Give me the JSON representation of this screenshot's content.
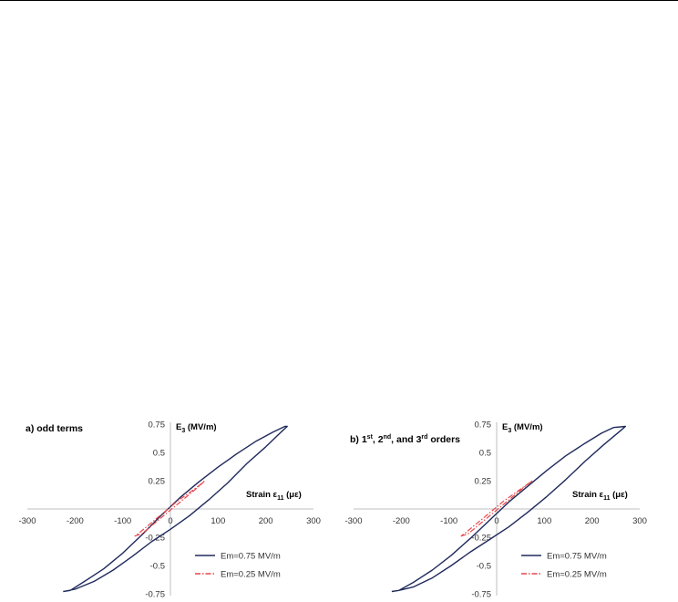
{
  "chart_data": [
    {
      "type": "line",
      "title": "a) odd terms",
      "xlabel": "Strain ε11 (με)",
      "ylabel": "E3 (MV/m)",
      "xlim": [
        -300,
        300
      ],
      "ylim": [
        -0.75,
        0.75
      ],
      "x_ticks": [
        "-300",
        "-200",
        "-100",
        "0",
        "100",
        "200",
        "300"
      ],
      "y_ticks": [
        "0.75",
        "0.5",
        "0.25",
        "-0.25",
        "-0.5",
        "-0.75"
      ],
      "legend_position": "bottom-right",
      "series": [
        {
          "name": "Em=0.75 MV/m",
          "color": "#1f2a5c",
          "style": "solid",
          "x": [
            -225,
            -210,
            -180,
            -140,
            -100,
            -60,
            -20,
            20,
            60,
            100,
            140,
            180,
            215,
            240,
            245,
            232,
            200,
            160,
            120,
            80,
            40,
            0,
            -40,
            -80,
            -120,
            -160,
            -200,
            -225
          ],
          "y": [
            -0.73,
            -0.72,
            -0.64,
            -0.53,
            -0.39,
            -0.23,
            -0.06,
            0.1,
            0.24,
            0.37,
            0.49,
            0.6,
            0.68,
            0.73,
            0.73,
            0.68,
            0.55,
            0.4,
            0.23,
            0.08,
            -0.06,
            -0.18,
            -0.29,
            -0.42,
            -0.54,
            -0.64,
            -0.71,
            -0.73
          ]
        },
        {
          "name": "Em=0.25 MV/m",
          "color": "#e8474b",
          "style": "dash-dot",
          "x": [
            -75,
            -60,
            -40,
            -20,
            0,
            20,
            40,
            60,
            72,
            70,
            55,
            35,
            15,
            -5,
            -25,
            -45,
            -65,
            -75
          ],
          "y": [
            -0.24,
            -0.22,
            -0.15,
            -0.08,
            -0.01,
            0.06,
            0.13,
            0.2,
            0.25,
            0.24,
            0.19,
            0.13,
            0.07,
            0.0,
            -0.07,
            -0.14,
            -0.21,
            -0.24
          ]
        }
      ]
    },
    {
      "type": "line",
      "title": "b) 1st, 2nd, and 3rd orders",
      "title_parts": {
        "p1": "b) 1",
        "s1": "st",
        "p2": ", 2",
        "s2": "nd",
        "p3": ", and 3",
        "s3": "rd",
        "p4": " orders"
      },
      "xlabel": "Strain ε11 (με)",
      "ylabel": "E3 (MV/m)",
      "xlim": [
        -300,
        300
      ],
      "ylim": [
        -0.75,
        0.75
      ],
      "x_ticks": [
        "-300",
        "-200",
        "-100",
        "0",
        "100",
        "200",
        "300"
      ],
      "y_ticks": [
        "0.75",
        "0.5",
        "0.25",
        "-0.25",
        "-0.5",
        "-0.75"
      ],
      "legend_position": "bottom-right",
      "series": [
        {
          "name": "Em=0.75 MV/m",
          "color": "#1f2a5c",
          "style": "solid",
          "x": [
            -220,
            -205,
            -175,
            -135,
            -95,
            -55,
            -15,
            25,
            65,
            105,
            145,
            185,
            220,
            245,
            270,
            262,
            225,
            185,
            145,
            105,
            65,
            25,
            -15,
            -55,
            -95,
            -135,
            -175,
            -205,
            -220
          ],
          "y": [
            -0.73,
            -0.72,
            -0.65,
            -0.54,
            -0.41,
            -0.26,
            -0.1,
            0.06,
            0.2,
            0.34,
            0.47,
            0.58,
            0.67,
            0.72,
            0.73,
            0.7,
            0.57,
            0.42,
            0.26,
            0.11,
            -0.03,
            -0.16,
            -0.27,
            -0.38,
            -0.5,
            -0.61,
            -0.69,
            -0.72,
            -0.73
          ]
        },
        {
          "name": "Em=0.25 MV/m",
          "color": "#e8474b",
          "style": "dash-dot",
          "x": [
            -75,
            -60,
            -40,
            -20,
            0,
            20,
            40,
            60,
            75,
            72,
            55,
            35,
            15,
            -5,
            -25,
            -45,
            -65,
            -75
          ],
          "y": [
            -0.24,
            -0.22,
            -0.15,
            -0.08,
            -0.01,
            0.06,
            0.13,
            0.2,
            0.25,
            0.24,
            0.19,
            0.13,
            0.07,
            0.0,
            -0.07,
            -0.14,
            -0.21,
            -0.24
          ]
        }
      ]
    }
  ]
}
